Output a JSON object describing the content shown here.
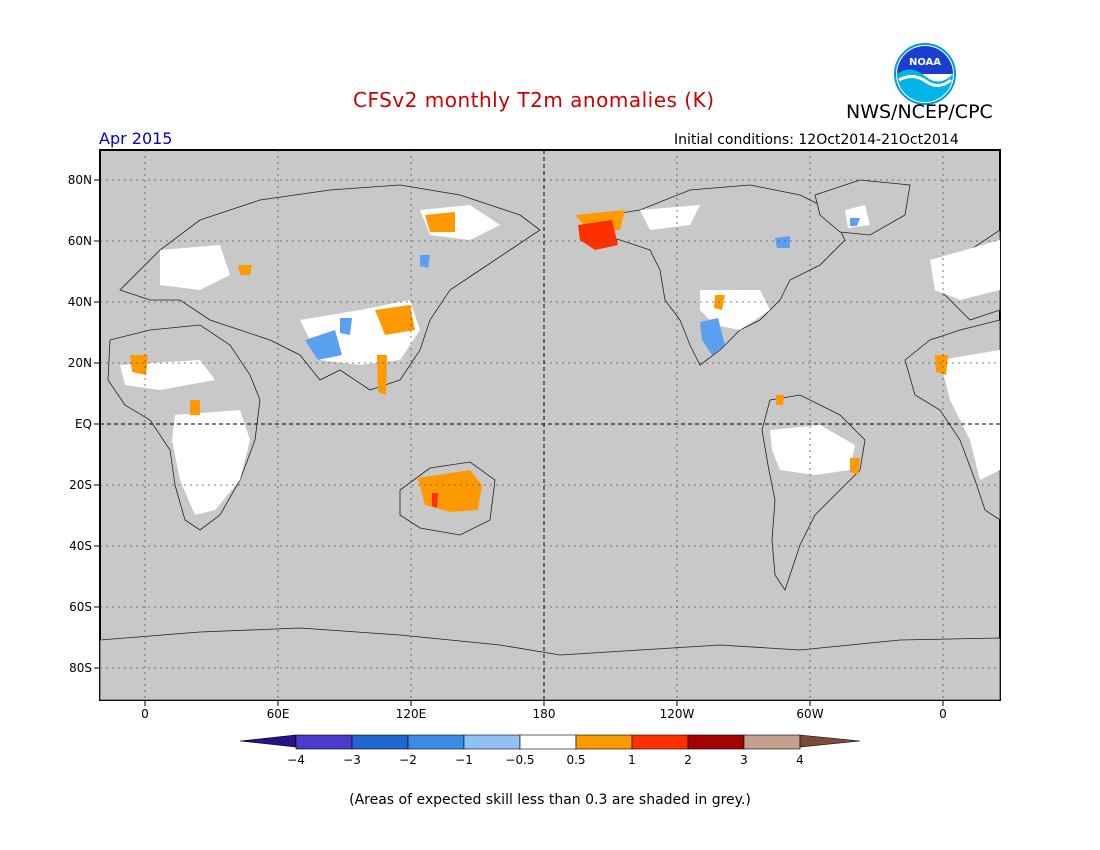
{
  "header": {
    "title": "CFSv2 monthly T2m anomalies (K)",
    "agency": "NWS/NCEP/CPC",
    "logo_text": "NOAA",
    "month_label": "Apr 2015",
    "initial_conditions": "Initial conditions: 12Oct2014-21Oct2014"
  },
  "map": {
    "lat_labels": [
      "80N",
      "60N",
      "40N",
      "20N",
      "EQ",
      "20S",
      "40S",
      "60S",
      "80S"
    ],
    "lon_labels": [
      "0",
      "60E",
      "120E",
      "180",
      "120W",
      "60W",
      "0"
    ],
    "colors": {
      "ocean_grey": "#c8c8c8",
      "land_low_skill": "#ffffff",
      "grid": "#555555"
    }
  },
  "colorbar": {
    "labels": [
      "−4",
      "−3",
      "−2",
      "−1",
      "−0.5",
      "0.5",
      "1",
      "2",
      "3",
      "4"
    ],
    "colors": [
      "#2a1089",
      "#4d3bcd",
      "#1f66d1",
      "#3b8ce8",
      "#8fc1f5",
      "#ffffff",
      "#ff9900",
      "#ff3000",
      "#a50000",
      "#c3a08e",
      "#7a4a3a"
    ]
  },
  "footer": {
    "note": "(Areas of expected skill less than 0.3 are shaded in grey.)"
  }
}
